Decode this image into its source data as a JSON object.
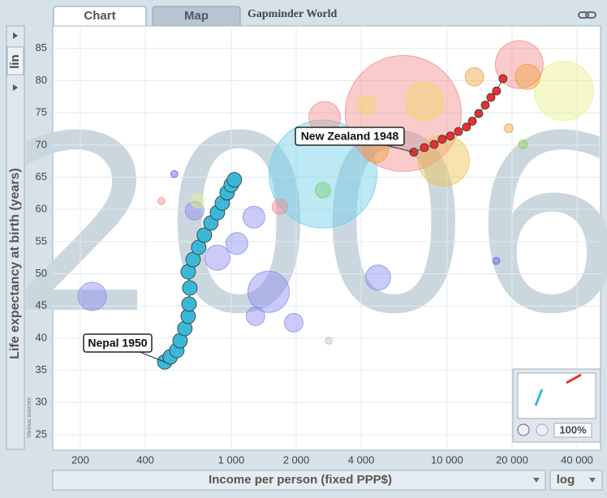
{
  "ui": {
    "tabs": [
      "Chart",
      "Map"
    ],
    "app_title": "Gapminder World",
    "y_scale": "lin",
    "x_scale": "log",
    "sources": "Various sources",
    "zoom": "100%"
  },
  "chart_data": {
    "type": "bubble",
    "watermark": "2006",
    "x_label": "Income per person (fixed PPP$)",
    "y_label": "Life expectancy at birth (years)",
    "xscale": "log",
    "xlim": [
      149,
      51400
    ],
    "xticks": [
      200,
      400,
      {
        "value": 1000,
        "label": "1 000"
      },
      {
        "value": 2000,
        "label": "2 000"
      },
      {
        "value": 4000,
        "label": "4 000"
      },
      {
        "value": 10000,
        "label": "10 000"
      },
      {
        "value": 20000,
        "label": "20 000"
      },
      {
        "value": 40000,
        "label": "40 000"
      }
    ],
    "ylim": [
      22.6,
      88.5
    ],
    "yticks": [
      25,
      30,
      35,
      40,
      45,
      50,
      55,
      60,
      65,
      70,
      75,
      80,
      85
    ],
    "grid": true,
    "series": [
      {
        "label": "Nepal 1950",
        "color": "#3bb8d8",
        "x": [
          492,
          522,
          560,
          580,
          610,
          632,
          638,
          643,
          632,
          666,
          707,
          751,
          805,
          863,
          910,
          958,
          1000,
          1035
        ],
        "values": [
          36.3,
          37.1,
          38.1,
          39.6,
          41.5,
          43.4,
          45.3,
          47.8,
          50.3,
          52.2,
          54.1,
          56.0,
          57.9,
          59.5,
          61.0,
          62.6,
          63.8,
          64.6
        ]
      },
      {
        "label": "New Zealand 1948",
        "color": "#e83030",
        "x": [
          7010,
          7850,
          8710,
          9490,
          10350,
          11290,
          12300,
          13090,
          14020,
          15030,
          15960,
          16950,
          18160
        ],
        "values": [
          68.9,
          69.6,
          70.1,
          70.9,
          71.4,
          72.1,
          72.8,
          73.7,
          74.9,
          76.2,
          77.4,
          78.4,
          80.3
        ]
      }
    ],
    "bubbles": {
      "x": [
        1490,
        2660,
        6270,
        227,
        4790,
        863,
        1062,
        1274,
        677,
        1296,
        1948,
        34800,
        21600,
        9660,
        2710,
        7850,
        23600,
        1680,
        2660,
        545,
        2830,
        16900,
        19300,
        22500,
        4670,
        4240,
        13400,
        701,
        475
      ],
      "values": [
        47.2,
        65.5,
        74.9,
        46.5,
        49.4,
        52.5,
        54.7,
        58.8,
        59.8,
        43.4,
        42.4,
        78.4,
        82.5,
        67.6,
        74.3,
        76.8,
        80.6,
        60.4,
        63.0,
        65.5,
        39.6,
        52.0,
        72.6,
        70.1,
        69.2,
        76.2,
        80.6,
        61.3,
        61.3
      ],
      "sizes": [
        144,
        1056,
        1225,
        64,
        49,
        49,
        36,
        36,
        25,
        25,
        25,
        306,
        196,
        225,
        81,
        121,
        49,
        16,
        16,
        2,
        2,
        2,
        4,
        4,
        49,
        25,
        25,
        12,
        2
      ],
      "colors": [
        "#8c8cf0",
        "#6ccfe8",
        "#f48c8c",
        "#8c8cf0",
        "#8c8cf0",
        "#8c8cf0",
        "#8c8cf0",
        "#8c8cf0",
        "#8c8cf0",
        "#8c8cf0",
        "#8c8cf0",
        "#e8f08c",
        "#f48c8c",
        "#f0c050",
        "#f48c8c",
        "#f0d860",
        "#f0a040",
        "#f48c8c",
        "#70d070",
        "#6060e0",
        "#c0c0c0",
        "#6060e0",
        "#f0a040",
        "#90d050",
        "#f0a040",
        "#f0d860",
        "#f0a040",
        "#e8f08c",
        "#f48c8c"
      ]
    }
  }
}
